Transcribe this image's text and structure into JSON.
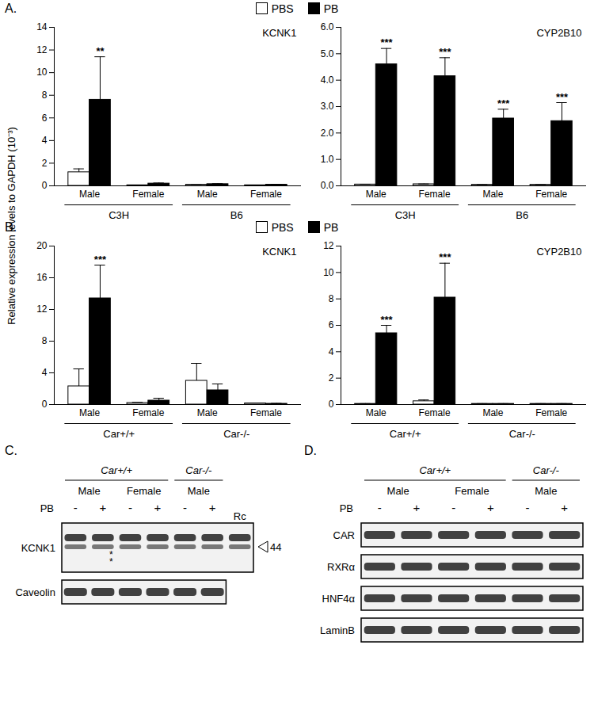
{
  "y_label": "Relative expression levels to GAPDH (10⁻³)",
  "panel_labels": [
    "A.",
    "B.",
    "C.",
    "D."
  ],
  "chart_data": [
    {
      "type": "bar",
      "title": "KCNK1",
      "legend": "top",
      "categories": [
        "Male",
        "Female",
        "Male",
        "Female"
      ],
      "groups": [
        "C3H",
        "C3H",
        "B6",
        "B6"
      ],
      "series": [
        {
          "name": "PBS",
          "color": "#ffffff",
          "values": [
            1.2,
            0.05,
            0.1,
            0.05
          ],
          "errors": [
            0.3,
            0.02,
            0.03,
            0.02
          ],
          "annotations": [
            null,
            null,
            null,
            null
          ]
        },
        {
          "name": "PB",
          "color": "#000000",
          "values": [
            7.6,
            0.2,
            0.15,
            0.1
          ],
          "errors": [
            3.8,
            0.05,
            0.04,
            0.03
          ],
          "annotations": [
            "**",
            null,
            null,
            null
          ]
        }
      ],
      "ylim": [
        0,
        14
      ],
      "yticks": [
        0,
        2,
        4,
        6,
        8,
        10,
        12,
        14
      ]
    },
    {
      "type": "bar",
      "title": "CYP2B10",
      "categories": [
        "Male",
        "Female",
        "Male",
        "Female"
      ],
      "groups": [
        "C3H",
        "C3H",
        "B6",
        "B6"
      ],
      "series": [
        {
          "name": "PBS",
          "color": "#ffffff",
          "values": [
            0.05,
            0.06,
            0.04,
            0.04
          ],
          "errors": [
            0.01,
            0.01,
            0.01,
            0.01
          ],
          "annotations": [
            null,
            null,
            null,
            null
          ]
        },
        {
          "name": "PB",
          "color": "#000000",
          "values": [
            4.6,
            4.15,
            2.55,
            2.45
          ],
          "errors": [
            0.6,
            0.7,
            0.35,
            0.7
          ],
          "annotations": [
            "***",
            "***",
            "***",
            "***"
          ]
        }
      ],
      "ylim": [
        0,
        6
      ],
      "yticks": [
        0,
        1,
        2,
        3,
        4,
        5,
        6
      ]
    },
    {
      "type": "bar",
      "title": "KCNK1",
      "legend": "top",
      "categories": [
        "Male",
        "Female",
        "Male",
        "Female"
      ],
      "groups": [
        "Car+/+",
        "Car+/+",
        "Car-/-",
        "Car-/-"
      ],
      "series": [
        {
          "name": "PBS",
          "color": "#ffffff",
          "values": [
            2.3,
            0.2,
            3.0,
            0.15
          ],
          "errors": [
            2.2,
            0.1,
            2.2,
            0.05
          ],
          "annotations": [
            null,
            null,
            null,
            null
          ]
        },
        {
          "name": "PB",
          "color": "#000000",
          "values": [
            13.4,
            0.5,
            1.8,
            0.1
          ],
          "errors": [
            4.2,
            0.3,
            0.8,
            0.05
          ],
          "annotations": [
            "***",
            null,
            null,
            null
          ]
        }
      ],
      "ylim": [
        0,
        20
      ],
      "yticks": [
        0,
        4,
        8,
        12,
        16,
        20
      ]
    },
    {
      "type": "bar",
      "title": "CYP2B10",
      "categories": [
        "Male",
        "Female",
        "Male",
        "Female"
      ],
      "groups": [
        "Car+/+",
        "Car+/+",
        "Car-/-",
        "Car-/-"
      ],
      "series": [
        {
          "name": "PBS",
          "color": "#ffffff",
          "values": [
            0.05,
            0.25,
            0.05,
            0.05
          ],
          "errors": [
            0.02,
            0.1,
            0.02,
            0.02
          ],
          "annotations": [
            null,
            null,
            null,
            null
          ]
        },
        {
          "name": "PB",
          "color": "#000000",
          "values": [
            5.4,
            8.1,
            0.05,
            0.05
          ],
          "errors": [
            0.6,
            2.6,
            0.02,
            0.02
          ],
          "annotations": [
            "***",
            "***",
            null,
            null
          ]
        }
      ],
      "ylim": [
        0,
        12
      ],
      "yticks": [
        0,
        2,
        4,
        6,
        8,
        10,
        12
      ]
    }
  ],
  "blots": [
    {
      "panel": "C.",
      "treatment_label": "PB",
      "lanes": [
        {
          "group": "Car+/+",
          "sex": "Male",
          "pb": "-"
        },
        {
          "group": "Car+/+",
          "sex": "Male",
          "pb": "+"
        },
        {
          "group": "Car+/+",
          "sex": "Female",
          "pb": "-"
        },
        {
          "group": "Car+/+",
          "sex": "Female",
          "pb": "+"
        },
        {
          "group": "Car-/-",
          "sex": "Male",
          "pb": "-"
        },
        {
          "group": "Car-/-",
          "sex": "Male",
          "pb": "+"
        },
        {
          "label": "Rc",
          "rows": [
            "KCNK1"
          ]
        }
      ],
      "rows": [
        "KCNK1",
        "Caveolin"
      ],
      "marker": {
        "row": "KCNK1",
        "label": "44"
      },
      "annotations": [
        {
          "row": "KCNK1",
          "lane": 1,
          "text": "*"
        },
        {
          "row": "KCNK1",
          "lane": 1,
          "text": "*"
        }
      ]
    },
    {
      "panel": "D.",
      "treatment_label": "PB",
      "lanes": [
        {
          "group": "Car+/+",
          "sex": "Male",
          "pb": "-"
        },
        {
          "group": "Car+/+",
          "sex": "Male",
          "pb": "+"
        },
        {
          "group": "Car+/+",
          "sex": "Female",
          "pb": "-"
        },
        {
          "group": "Car+/+",
          "sex": "Female",
          "pb": "+"
        },
        {
          "group": "Car-/-",
          "sex": "Male",
          "pb": "-"
        },
        {
          "group": "Car-/-",
          "sex": "Male",
          "pb": "+"
        }
      ],
      "rows": [
        "CAR",
        "RXRα",
        "HNF4α",
        "LaminB"
      ]
    }
  ]
}
